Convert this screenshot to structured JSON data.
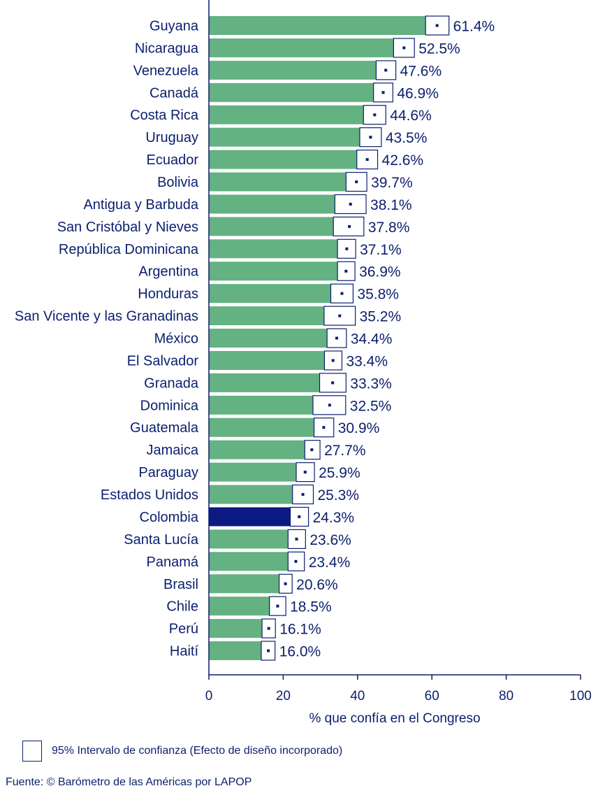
{
  "chart_data": {
    "type": "bar",
    "orientation": "horizontal",
    "categories": [
      "Guyana",
      "Nicaragua",
      "Venezuela",
      "Canadá",
      "Costa Rica",
      "Uruguay",
      "Ecuador",
      "Bolivia",
      "Antigua y Barbuda",
      "San Cristóbal y Nieves",
      "República Dominicana",
      "Argentina",
      "Honduras",
      "San Vicente y las Granadinas",
      "México",
      "El Salvador",
      "Granada",
      "Dominica",
      "Guatemala",
      "Jamaica",
      "Paraguay",
      "Estados Unidos",
      "Colombia",
      "Santa Lucía",
      "Panamá",
      "Brasil",
      "Chile",
      "Perú",
      "Haití"
    ],
    "values": [
      61.4,
      52.5,
      47.6,
      46.9,
      44.6,
      43.5,
      42.6,
      39.7,
      38.1,
      37.8,
      37.1,
      36.9,
      35.8,
      35.2,
      34.4,
      33.4,
      33.3,
      32.5,
      30.9,
      27.7,
      25.9,
      25.3,
      24.3,
      23.6,
      23.4,
      20.6,
      18.5,
      16.1,
      16.0
    ],
    "value_labels": [
      "61.4%",
      "52.5%",
      "47.6%",
      "46.9%",
      "44.6%",
      "43.5%",
      "42.6%",
      "39.7%",
      "38.1%",
      "37.8%",
      "37.1%",
      "36.9%",
      "35.8%",
      "35.2%",
      "34.4%",
      "33.4%",
      "33.3%",
      "32.5%",
      "30.9%",
      "27.7%",
      "25.9%",
      "25.3%",
      "24.3%",
      "23.6%",
      "23.4%",
      "20.6%",
      "18.5%",
      "16.1%",
      "16.0%"
    ],
    "ci_low": [
      58.3,
      49.7,
      45.0,
      44.3,
      41.6,
      40.6,
      39.8,
      36.9,
      33.9,
      33.5,
      34.6,
      34.6,
      32.8,
      31.0,
      31.8,
      31.1,
      29.8,
      28.0,
      28.3,
      25.8,
      23.5,
      22.5,
      21.9,
      21.3,
      21.3,
      18.9,
      16.3,
      14.3,
      14.1
    ],
    "ci_high": [
      64.6,
      55.3,
      50.3,
      49.5,
      47.6,
      46.4,
      45.4,
      42.5,
      42.3,
      41.7,
      39.5,
      39.3,
      38.8,
      39.4,
      37.0,
      35.8,
      36.9,
      36.8,
      33.6,
      29.9,
      28.4,
      28.1,
      26.8,
      26.0,
      25.7,
      22.4,
      20.7,
      17.9,
      17.8
    ],
    "highlight": "Colombia",
    "colors": {
      "bar": "#64b182",
      "highlight": "#0c1a84",
      "text": "#0b1f6e",
      "ci_stroke": "#0b1f6e"
    },
    "xlim": [
      0,
      100
    ],
    "xticks": [
      0,
      20,
      40,
      60,
      80,
      100
    ],
    "xlabel": "%  que confía en el Congreso",
    "grid": false
  },
  "legend": {
    "ci_label": "95% Intervalo de confianza (Efecto de diseño incorporado)"
  },
  "source": "Fuente: © Barómetro de las Américas por LAPOP"
}
